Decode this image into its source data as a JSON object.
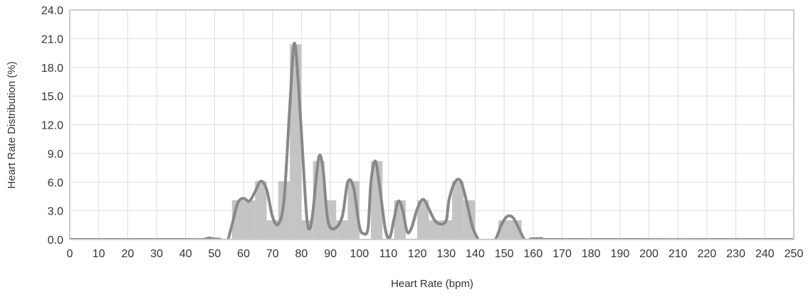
{
  "chart_data": {
    "type": "bar",
    "title": "",
    "xlabel": "Heart Rate (bpm)",
    "ylabel": "Heart Rate Distribution (%)",
    "xlim": [
      0,
      250
    ],
    "ylim": [
      0,
      24
    ],
    "x_ticks": [
      "0",
      "10",
      "20",
      "30",
      "40",
      "50",
      "60",
      "70",
      "80",
      "90",
      "100",
      "110",
      "120",
      "130",
      "140",
      "150",
      "160",
      "170",
      "180",
      "190",
      "200",
      "210",
      "220",
      "230",
      "240",
      "250"
    ],
    "y_ticks": [
      "0.0",
      "3.0",
      "6.0",
      "9.0",
      "12.0",
      "15.0",
      "18.0",
      "21.0",
      "24.0"
    ],
    "grid": true,
    "bar_width_bpm": 4,
    "bars": [
      {
        "x": 58,
        "value": 4.1
      },
      {
        "x": 62,
        "value": 4.1
      },
      {
        "x": 66,
        "value": 6.1
      },
      {
        "x": 70,
        "value": 2.0
      },
      {
        "x": 74,
        "value": 6.1
      },
      {
        "x": 78,
        "value": 20.4
      },
      {
        "x": 82,
        "value": 2.0
      },
      {
        "x": 86,
        "value": 8.2
      },
      {
        "x": 90,
        "value": 4.1
      },
      {
        "x": 94,
        "value": 2.0
      },
      {
        "x": 98,
        "value": 6.1
      },
      {
        "x": 102,
        "value": 0.0
      },
      {
        "x": 106,
        "value": 8.2
      },
      {
        "x": 110,
        "value": 0.0
      },
      {
        "x": 114,
        "value": 4.1
      },
      {
        "x": 118,
        "value": 0.0
      },
      {
        "x": 122,
        "value": 4.1
      },
      {
        "x": 126,
        "value": 2.0
      },
      {
        "x": 130,
        "value": 2.0
      },
      {
        "x": 134,
        "value": 6.1
      },
      {
        "x": 138,
        "value": 4.1
      },
      {
        "x": 150,
        "value": 2.0
      },
      {
        "x": 154,
        "value": 2.0
      }
    ],
    "density_curve": [
      [
        0,
        0.0
      ],
      [
        40,
        0.0
      ],
      [
        46,
        0.0
      ],
      [
        48,
        0.15
      ],
      [
        50,
        0.05
      ],
      [
        52,
        0.0
      ],
      [
        54,
        -0.5
      ],
      [
        56,
        1.5
      ],
      [
        58,
        3.8
      ],
      [
        60,
        4.3
      ],
      [
        62,
        4.0
      ],
      [
        64,
        5.0
      ],
      [
        66,
        6.1
      ],
      [
        68,
        5.2
      ],
      [
        70,
        2.4
      ],
      [
        72,
        1.6
      ],
      [
        74,
        4.2
      ],
      [
        76,
        14.0
      ],
      [
        77.5,
        20.5
      ],
      [
        79,
        16.0
      ],
      [
        81,
        6.0
      ],
      [
        82,
        1.8
      ],
      [
        83,
        1.2
      ],
      [
        84,
        3.0
      ],
      [
        86,
        8.6
      ],
      [
        87.5,
        7.2
      ],
      [
        89,
        2.2
      ],
      [
        91,
        1.1
      ],
      [
        94,
        2.3
      ],
      [
        96,
        6.0
      ],
      [
        98,
        5.4
      ],
      [
        100,
        1.4
      ],
      [
        101.5,
        0.6
      ],
      [
        103,
        1.2
      ],
      [
        104,
        6.0
      ],
      [
        105.5,
        8.2
      ],
      [
        107,
        5.5
      ],
      [
        109,
        1.0
      ],
      [
        110.5,
        0.2
      ],
      [
        112,
        2.2
      ],
      [
        113.5,
        4.0
      ],
      [
        115,
        3.0
      ],
      [
        116.5,
        0.8
      ],
      [
        118,
        1.2
      ],
      [
        120,
        3.2
      ],
      [
        122,
        4.2
      ],
      [
        124,
        3.2
      ],
      [
        126,
        2.0
      ],
      [
        128,
        1.6
      ],
      [
        130,
        2.0
      ],
      [
        131,
        4.2
      ],
      [
        133,
        6.0
      ],
      [
        135,
        6.1
      ],
      [
        137,
        4.0
      ],
      [
        139,
        1.4
      ],
      [
        141,
        0.0
      ],
      [
        143,
        -0.9
      ],
      [
        145,
        -0.3
      ],
      [
        147,
        0.0
      ],
      [
        149,
        1.5
      ],
      [
        151,
        2.4
      ],
      [
        153,
        2.3
      ],
      [
        155,
        1.2
      ],
      [
        157,
        0.0
      ],
      [
        159,
        -0.3
      ],
      [
        161,
        0.0
      ],
      [
        163,
        0.1
      ],
      [
        166,
        0.0
      ],
      [
        250,
        0.0
      ]
    ],
    "colors": {
      "bar": "#c4c4c4",
      "curve": "#888888",
      "grid": "#dddddd",
      "frame": "#cccccc"
    }
  }
}
